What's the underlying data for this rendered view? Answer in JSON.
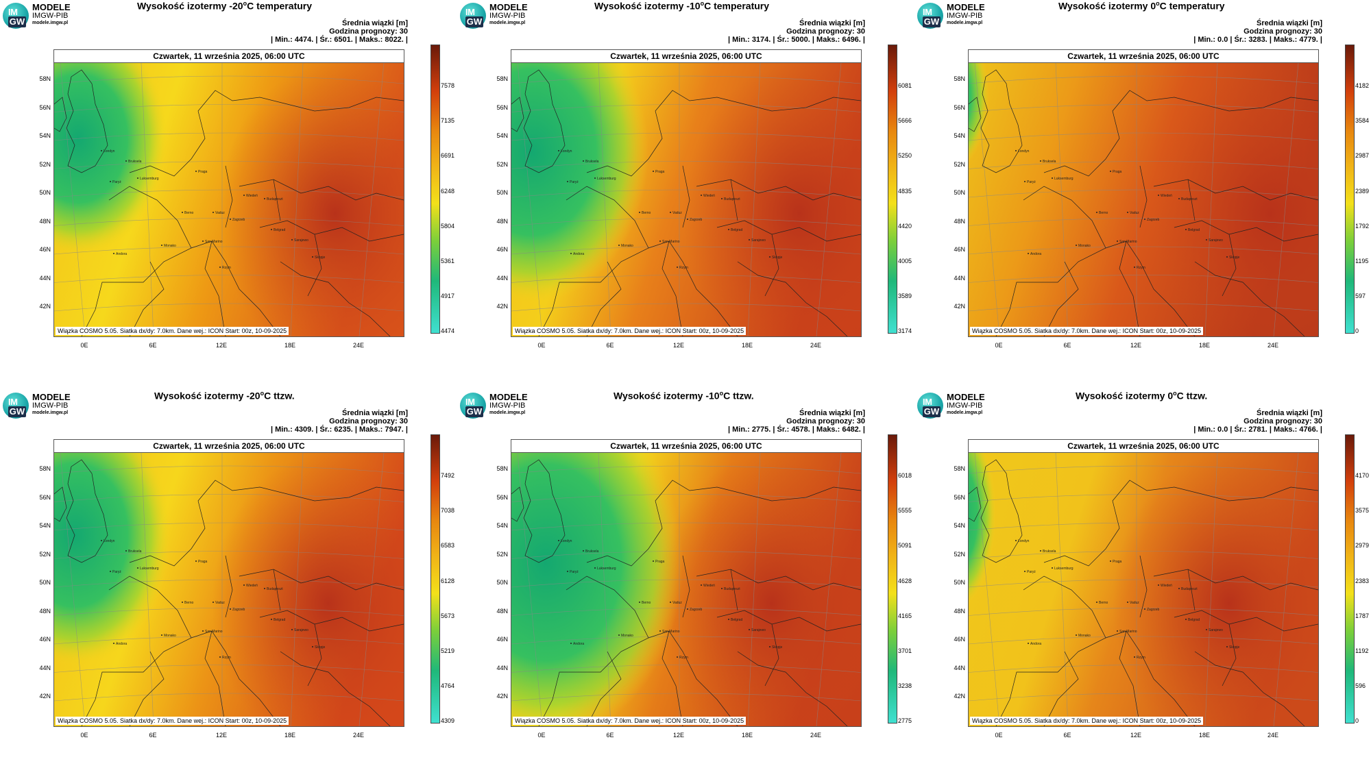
{
  "logo": {
    "im": "IM",
    "gw": "GW",
    "brand": "MODELE",
    "org": "IMGW-PIB",
    "url": "modele.imgw.pl"
  },
  "common": {
    "subtitle": "Średnia wiązki [m]",
    "forecast_hour": "Godzina prognozy: 30",
    "date": "Czwartek, 11 września 2025, 06:00 UTC",
    "footer": "Wiązka COSMO 5.05. Siatka dx/dy: 7.0km. Dane wej.: ICON Start: 00z, 10-09-2025",
    "lat_labels": [
      "58N",
      "56N",
      "54N",
      "52N",
      "50N",
      "48N",
      "46N",
      "44N",
      "42N"
    ],
    "lon_labels": [
      "0E",
      "6E",
      "12E",
      "18E",
      "24E"
    ],
    "cities": [
      "Londyn",
      "Bruksela",
      "Paryż",
      "Luksemburg",
      "Praga",
      "Wiedeń",
      "Budapeszt",
      "Berno",
      "Vaduz",
      "Zagrzeb",
      "Belgrad",
      "San Marino",
      "Monako",
      "Sarajewo",
      "Andora",
      "Rzym",
      "Skopje"
    ]
  },
  "panels": [
    {
      "title_pre": "Wysokość izotermy -20",
      "title_post": "C temperatury",
      "title_deg": "o",
      "stats": "| Min.:   4474. | Śr.:   6501. | Maks.:   8022. |",
      "ticks": [
        "7578",
        "7135",
        "6691",
        "6248",
        "5804",
        "5361",
        "4917",
        "4474"
      ],
      "palette": "p1"
    },
    {
      "title_pre": "Wysokość izotermy -10",
      "title_post": "C temperatury",
      "title_deg": "o",
      "stats": "| Min.:   3174. | Śr.:   5000. | Maks.:   6496. |",
      "ticks": [
        "6081",
        "5666",
        "5250",
        "4835",
        "4420",
        "4005",
        "3589",
        "3174"
      ],
      "palette": "p2"
    },
    {
      "title_pre": "Wysokość izotermy 0",
      "title_post": "C temperatury",
      "title_deg": "o",
      "stats": "| Min.:     0.0 | Śr.:   3283. | Maks.:   4779. |",
      "ticks": [
        "4182",
        "3584",
        "2987",
        "2389",
        "1792",
        "1195",
        "597",
        "0"
      ],
      "palette": "p3"
    },
    {
      "title_pre": "Wysokość izotermy -20",
      "title_post": "C ttzw.",
      "title_deg": "o",
      "stats": "| Min.:   4309. | Śr.:   6235. | Maks.:   7947. |",
      "ticks": [
        "7492",
        "7038",
        "6583",
        "6128",
        "5673",
        "5219",
        "4764",
        "4309"
      ],
      "palette": "p4"
    },
    {
      "title_pre": "Wysokość izotermy -10",
      "title_post": "C ttzw.",
      "title_deg": "o",
      "stats": "| Min.:   2775. | Śr.:   4578. | Maks.:   6482. |",
      "ticks": [
        "6018",
        "5555",
        "5091",
        "4628",
        "4165",
        "3701",
        "3238",
        "2775"
      ],
      "palette": "p5"
    },
    {
      "title_pre": "Wysokość izotermy 0",
      "title_post": "C ttzw.",
      "title_deg": "o",
      "stats": "| Min.:     0.0 | Śr.:   2781. | Maks.:   4766. |",
      "ticks": [
        "4170",
        "3575",
        "2979",
        "2383",
        "1787",
        "1192",
        "596",
        "0"
      ],
      "palette": "p6"
    }
  ],
  "colors": {
    "green": "#1fb87a",
    "cyan": "#40e0d0",
    "yellow": "#f3e01a",
    "orange": "#e8880f",
    "red": "#d23f0c",
    "darkred": "#6a1a0a"
  }
}
